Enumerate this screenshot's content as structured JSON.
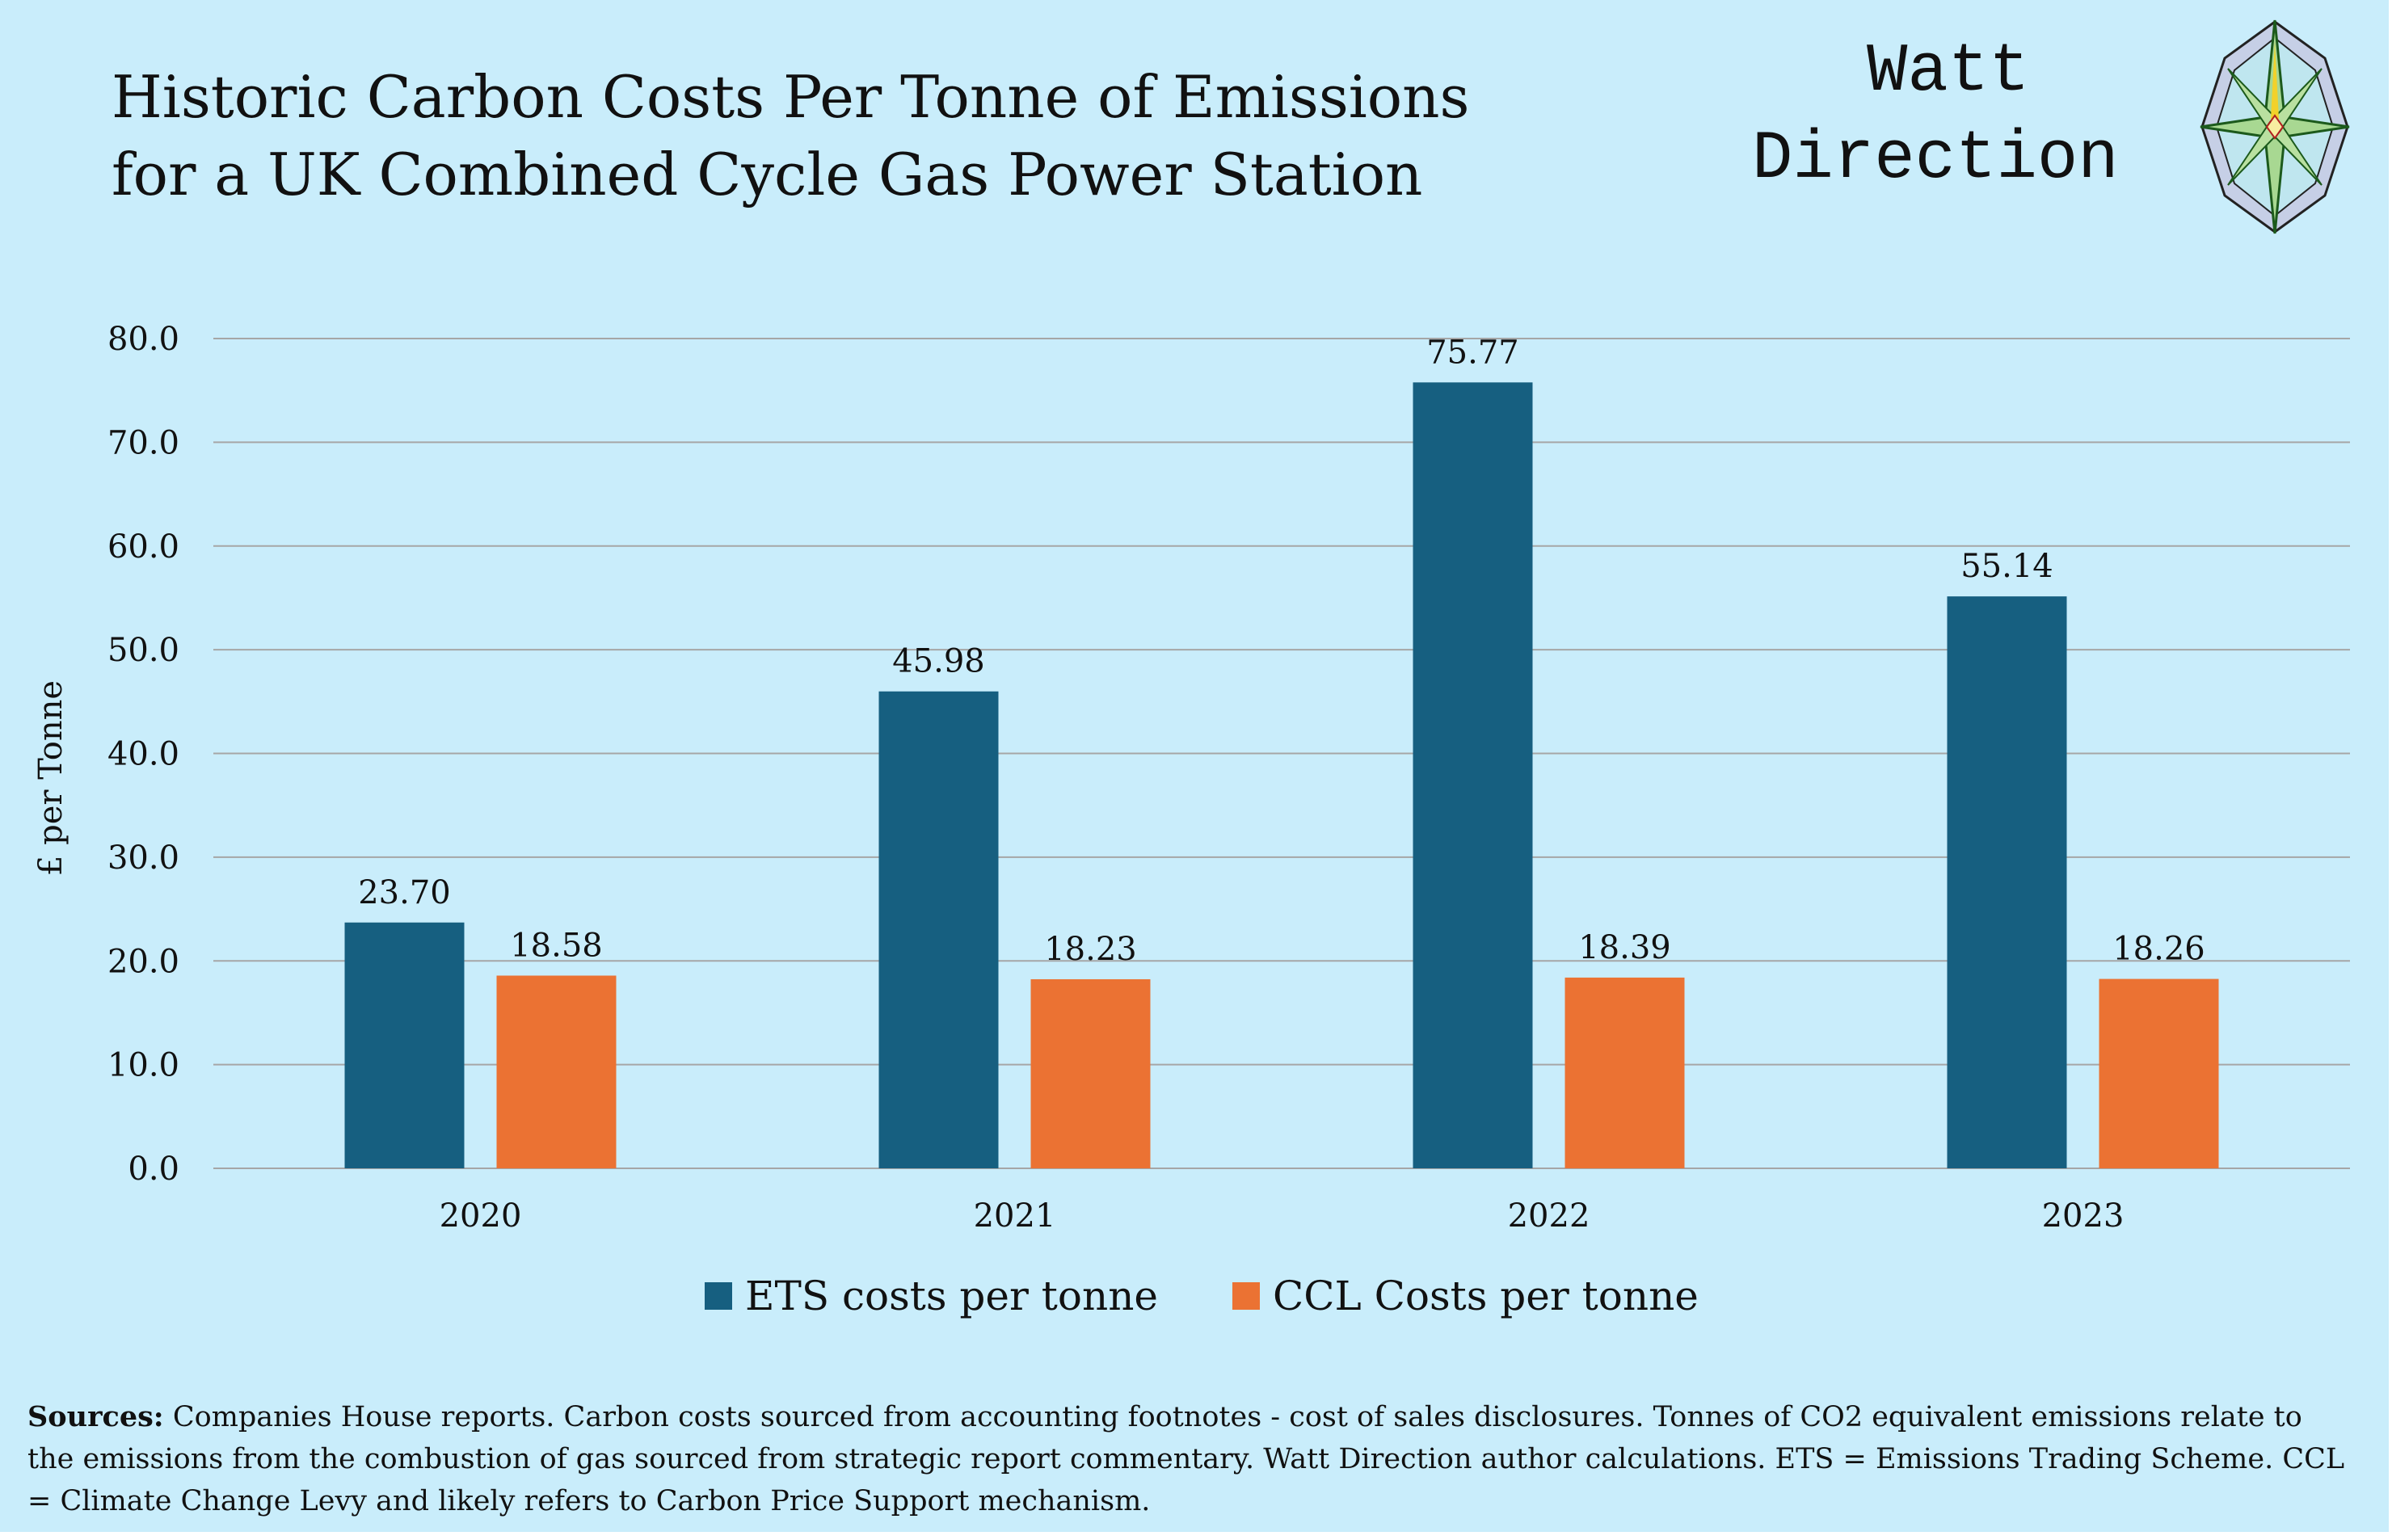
{
  "title_lines": [
    "Historic Carbon Costs Per Tonne of Emissions",
    "for a UK Combined Cycle Gas Power Station"
  ],
  "logo": {
    "line1": "Watt",
    "line2": "Direction"
  },
  "sources": {
    "label": "Sources:",
    "text": " Companies House reports. Carbon  costs sourced from accounting footnotes - cost of sales disclosures. Tonnes of CO2 equivalent emissions  relate to the emissions from the combustion of gas sourced from strategic report commentary. Watt Direction author calculations. ETS = Emissions Trading Scheme. CCL = Climate Change Levy and likely refers to Carbon Price Support mechanism."
  },
  "chart_data": {
    "type": "bar",
    "title": "Historic Carbon Costs Per Tonne of Emissions for a UK Combined Cycle Gas Power Station",
    "xlabel": "",
    "ylabel": "£ per Tonne",
    "ylim": [
      0,
      80
    ],
    "yticks": [
      "0.0",
      "10.0",
      "20.0",
      "30.0",
      "40.0",
      "50.0",
      "60.0",
      "70.0",
      "80.0"
    ],
    "categories": [
      "2020",
      "2021",
      "2022",
      "2023"
    ],
    "series": [
      {
        "name": "ETS costs per tonne",
        "color": "#165f80",
        "values": [
          23.7,
          45.98,
          75.77,
          55.14
        ],
        "labels": [
          "23.70",
          "45.98",
          "75.77",
          "55.14"
        ]
      },
      {
        "name": "CCL Costs per tonne",
        "color": "#eb7233",
        "values": [
          18.58,
          18.23,
          18.39,
          18.26
        ],
        "labels": [
          "18.58",
          "18.23",
          "18.39",
          "18.26"
        ]
      }
    ],
    "grid": true,
    "legend": "bottom"
  }
}
